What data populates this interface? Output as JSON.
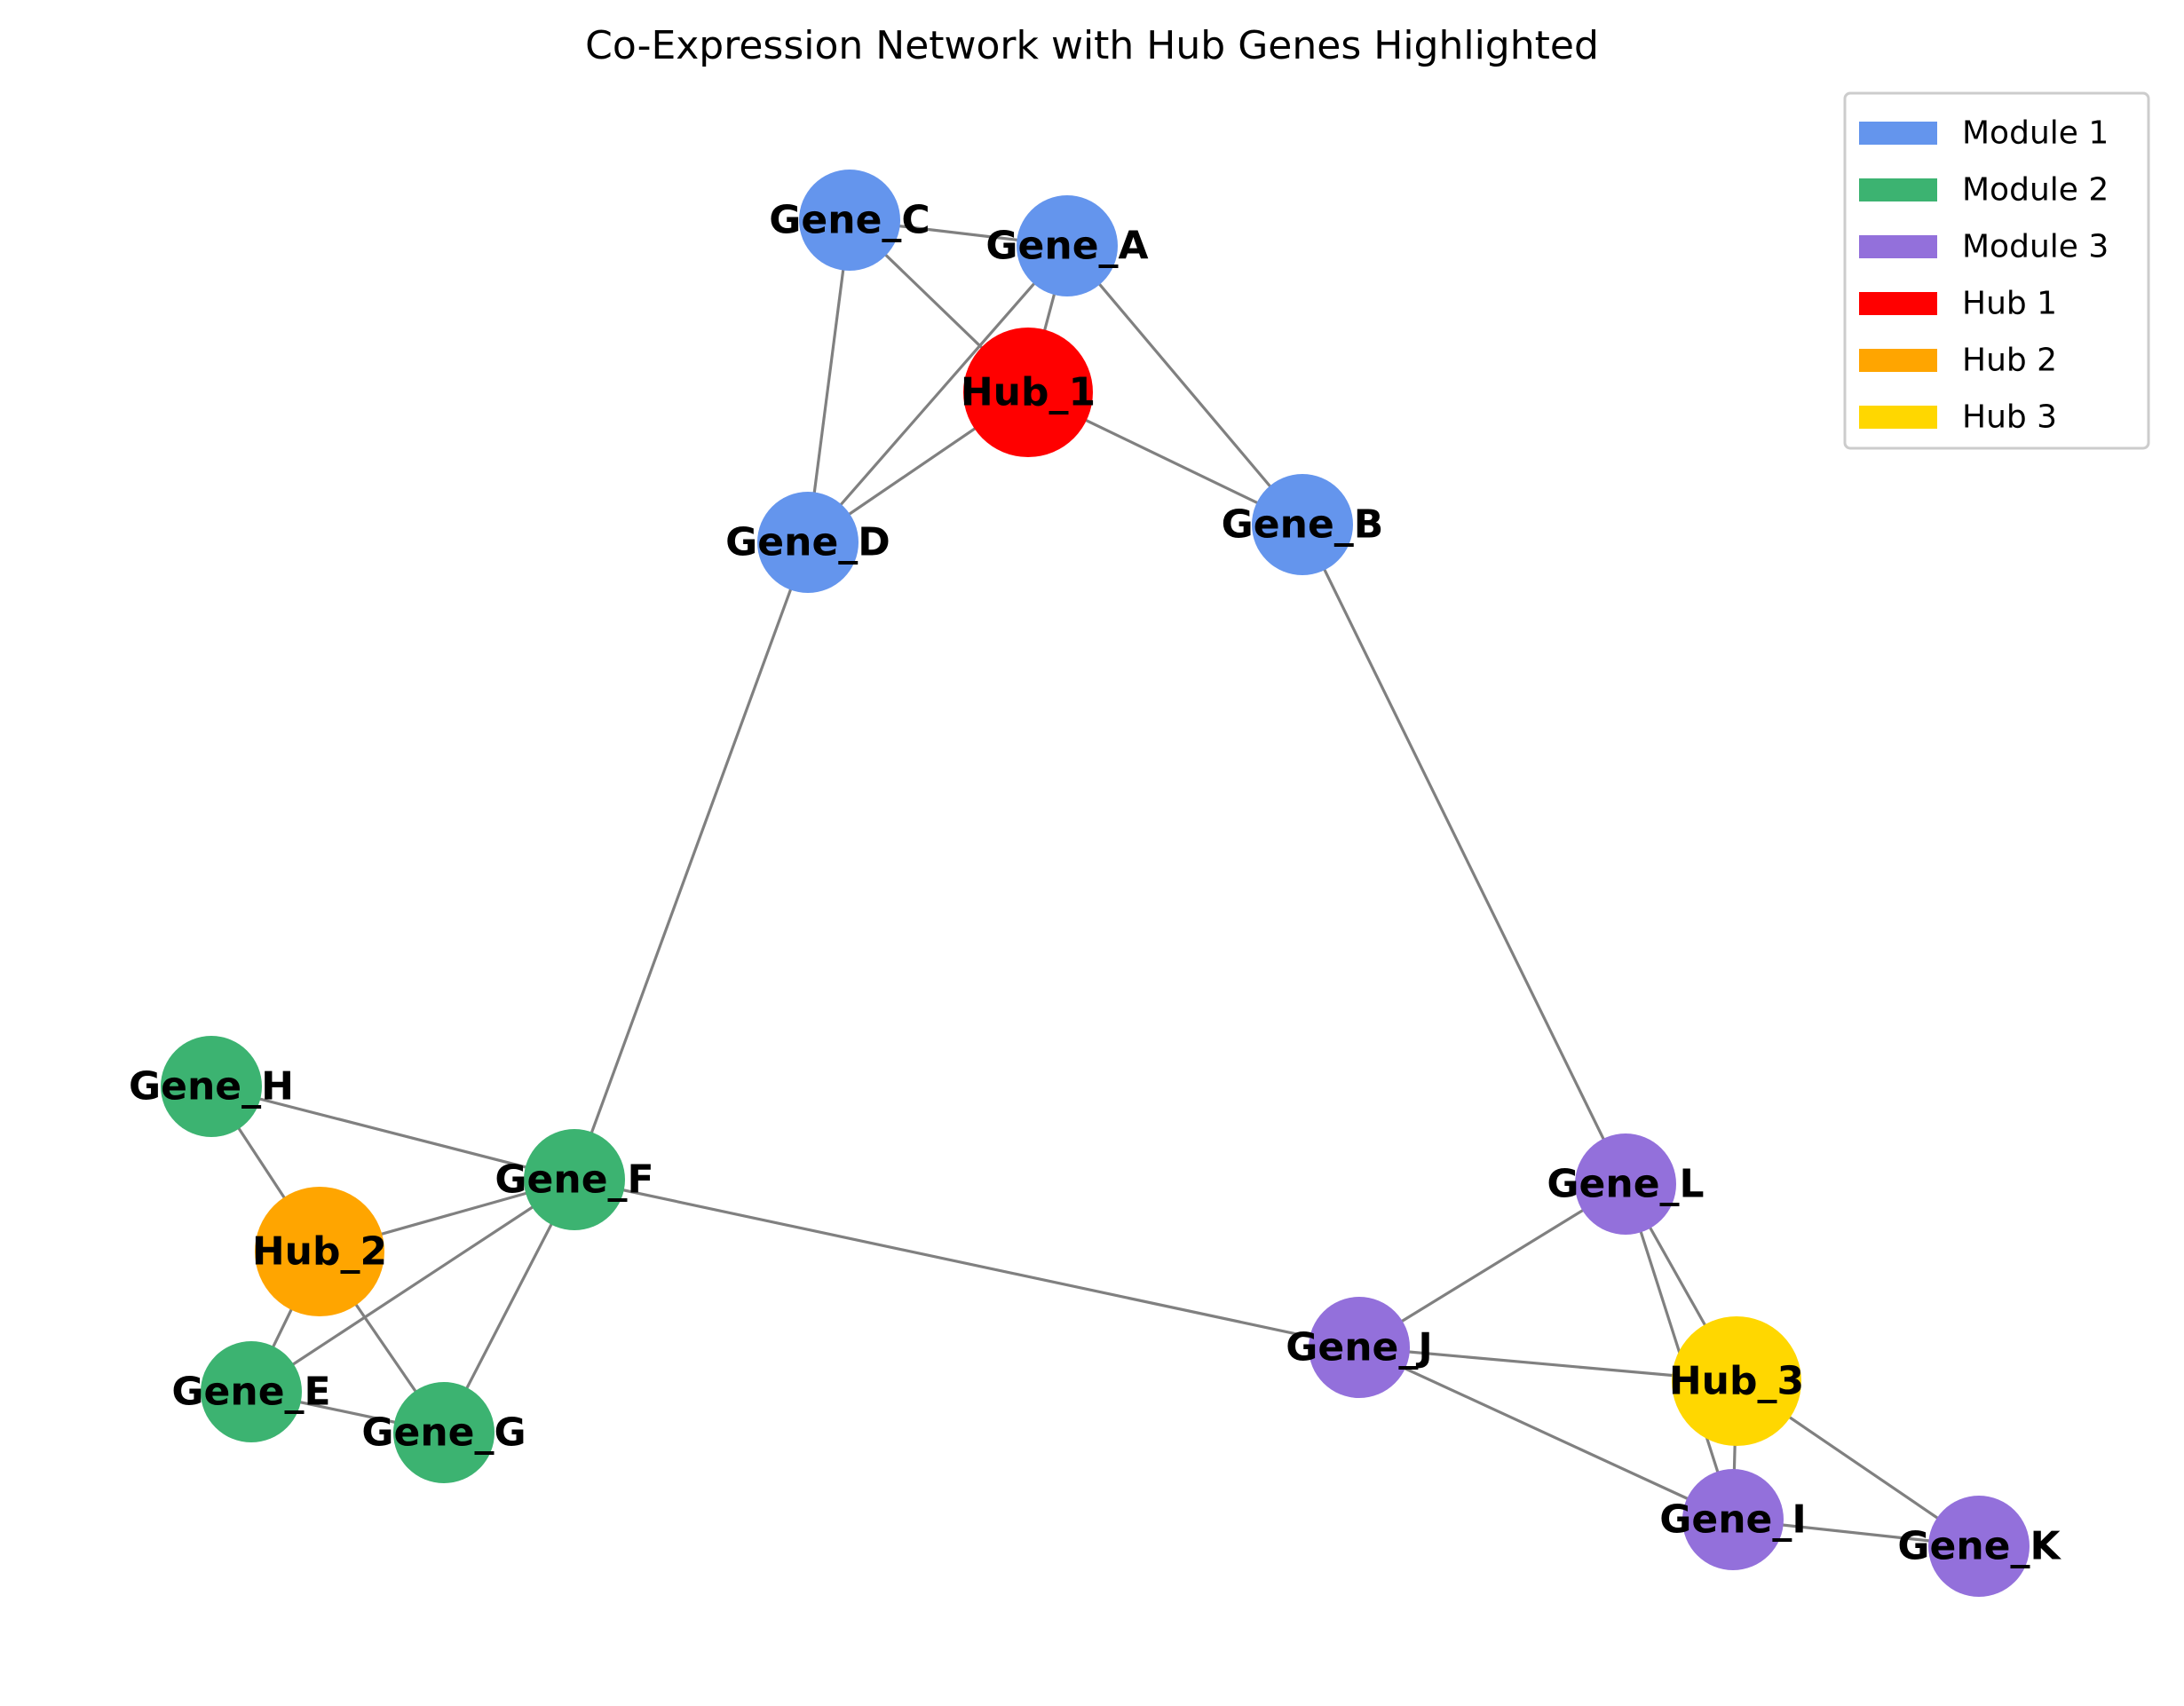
{
  "title": "Co-Expression Network with Hub Genes Highlighted",
  "colors": {
    "module1": "#6495ED",
    "module2": "#3CB371",
    "module3": "#9370DB",
    "hub1": "#FF0000",
    "hub2": "#FFA500",
    "hub3": "#FFD700",
    "edge": "#808080"
  },
  "legend": {
    "placement": "top-right",
    "items": [
      {
        "label": "Module 1",
        "color": "#6495ED"
      },
      {
        "label": "Module 2",
        "color": "#3CB371"
      },
      {
        "label": "Module 3",
        "color": "#9370DB"
      },
      {
        "label": "Hub 1",
        "color": "#FF0000"
      },
      {
        "label": "Hub 2",
        "color": "#FFA500"
      },
      {
        "label": "Hub 3",
        "color": "#FFD700"
      }
    ]
  },
  "nodes": [
    {
      "id": "Gene_A",
      "label": "Gene_A",
      "group": "Module 1",
      "color": "#6495ED",
      "hub": false
    },
    {
      "id": "Gene_B",
      "label": "Gene_B",
      "group": "Module 1",
      "color": "#6495ED",
      "hub": false
    },
    {
      "id": "Gene_C",
      "label": "Gene_C",
      "group": "Module 1",
      "color": "#6495ED",
      "hub": false
    },
    {
      "id": "Gene_D",
      "label": "Gene_D",
      "group": "Module 1",
      "color": "#6495ED",
      "hub": false
    },
    {
      "id": "Hub_1",
      "label": "Hub_1",
      "group": "Hub 1",
      "color": "#FF0000",
      "hub": true
    },
    {
      "id": "Gene_E",
      "label": "Gene_E",
      "group": "Module 2",
      "color": "#3CB371",
      "hub": false
    },
    {
      "id": "Gene_F",
      "label": "Gene_F",
      "group": "Module 2",
      "color": "#3CB371",
      "hub": false
    },
    {
      "id": "Gene_G",
      "label": "Gene_G",
      "group": "Module 2",
      "color": "#3CB371",
      "hub": false
    },
    {
      "id": "Gene_H",
      "label": "Gene_H",
      "group": "Module 2",
      "color": "#3CB371",
      "hub": false
    },
    {
      "id": "Hub_2",
      "label": "Hub_2",
      "group": "Hub 2",
      "color": "#FFA500",
      "hub": true
    },
    {
      "id": "Gene_I",
      "label": "Gene_I",
      "group": "Module 3",
      "color": "#9370DB",
      "hub": false
    },
    {
      "id": "Gene_J",
      "label": "Gene_J",
      "group": "Module 3",
      "color": "#9370DB",
      "hub": false
    },
    {
      "id": "Gene_K",
      "label": "Gene_K",
      "group": "Module 3",
      "color": "#9370DB",
      "hub": false
    },
    {
      "id": "Gene_L",
      "label": "Gene_L",
      "group": "Module 3",
      "color": "#9370DB",
      "hub": false
    },
    {
      "id": "Hub_3",
      "label": "Hub_3",
      "group": "Hub 3",
      "color": "#FFD700",
      "hub": true
    }
  ],
  "edges": [
    [
      "Gene_C",
      "Gene_A"
    ],
    [
      "Gene_C",
      "Hub_1"
    ],
    [
      "Gene_C",
      "Gene_D"
    ],
    [
      "Gene_A",
      "Hub_1"
    ],
    [
      "Gene_A",
      "Gene_D"
    ],
    [
      "Gene_A",
      "Gene_B"
    ],
    [
      "Hub_1",
      "Gene_D"
    ],
    [
      "Hub_1",
      "Gene_B"
    ],
    [
      "Gene_D",
      "Gene_F"
    ],
    [
      "Gene_B",
      "Gene_L"
    ],
    [
      "Gene_H",
      "Gene_F"
    ],
    [
      "Gene_H",
      "Hub_2"
    ],
    [
      "Gene_F",
      "Hub_2"
    ],
    [
      "Gene_F",
      "Gene_E"
    ],
    [
      "Gene_F",
      "Gene_G"
    ],
    [
      "Gene_F",
      "Gene_J"
    ],
    [
      "Hub_2",
      "Gene_E"
    ],
    [
      "Hub_2",
      "Gene_G"
    ],
    [
      "Gene_E",
      "Gene_G"
    ],
    [
      "Gene_L",
      "Gene_J"
    ],
    [
      "Gene_L",
      "Hub_3"
    ],
    [
      "Gene_L",
      "Gene_I"
    ],
    [
      "Gene_J",
      "Hub_3"
    ],
    [
      "Gene_J",
      "Gene_I"
    ],
    [
      "Hub_3",
      "Gene_I"
    ],
    [
      "Hub_3",
      "Gene_K"
    ],
    [
      "Gene_I",
      "Gene_K"
    ]
  ]
}
